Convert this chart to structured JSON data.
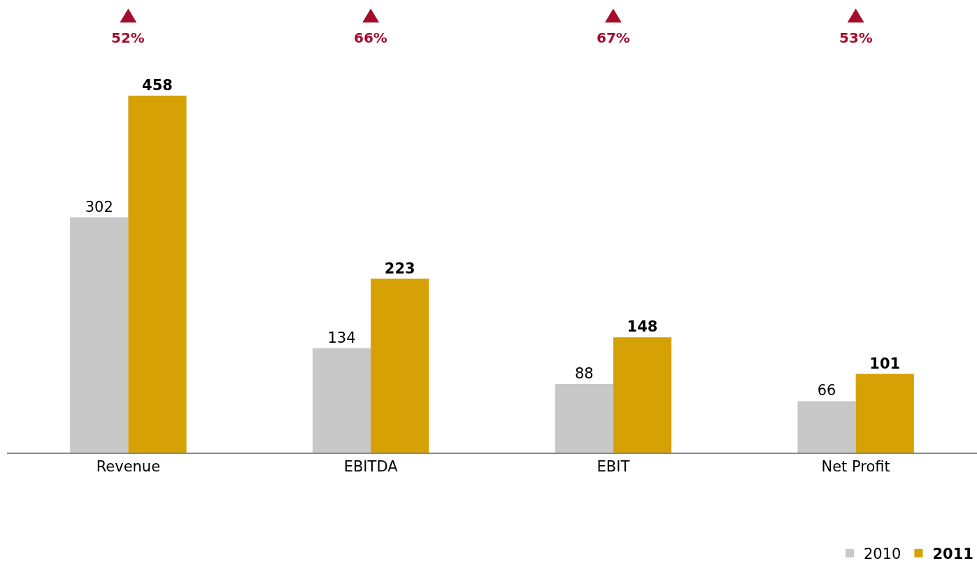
{
  "chart_data": {
    "type": "bar",
    "categories": [
      "Revenue",
      "EBITDA",
      "EBIT",
      "Net Profit"
    ],
    "series": [
      {
        "name": "2010",
        "color": "#c8c8c8",
        "values": [
          302,
          134,
          88,
          66
        ]
      },
      {
        "name": "2011",
        "color": "#d6a104",
        "values": [
          458,
          223,
          148,
          101
        ]
      }
    ],
    "data_labels": true,
    "legend": "bottom right",
    "grid": false,
    "annotations": [
      "52%",
      "66%",
      "67%",
      "53%"
    ]
  }
}
